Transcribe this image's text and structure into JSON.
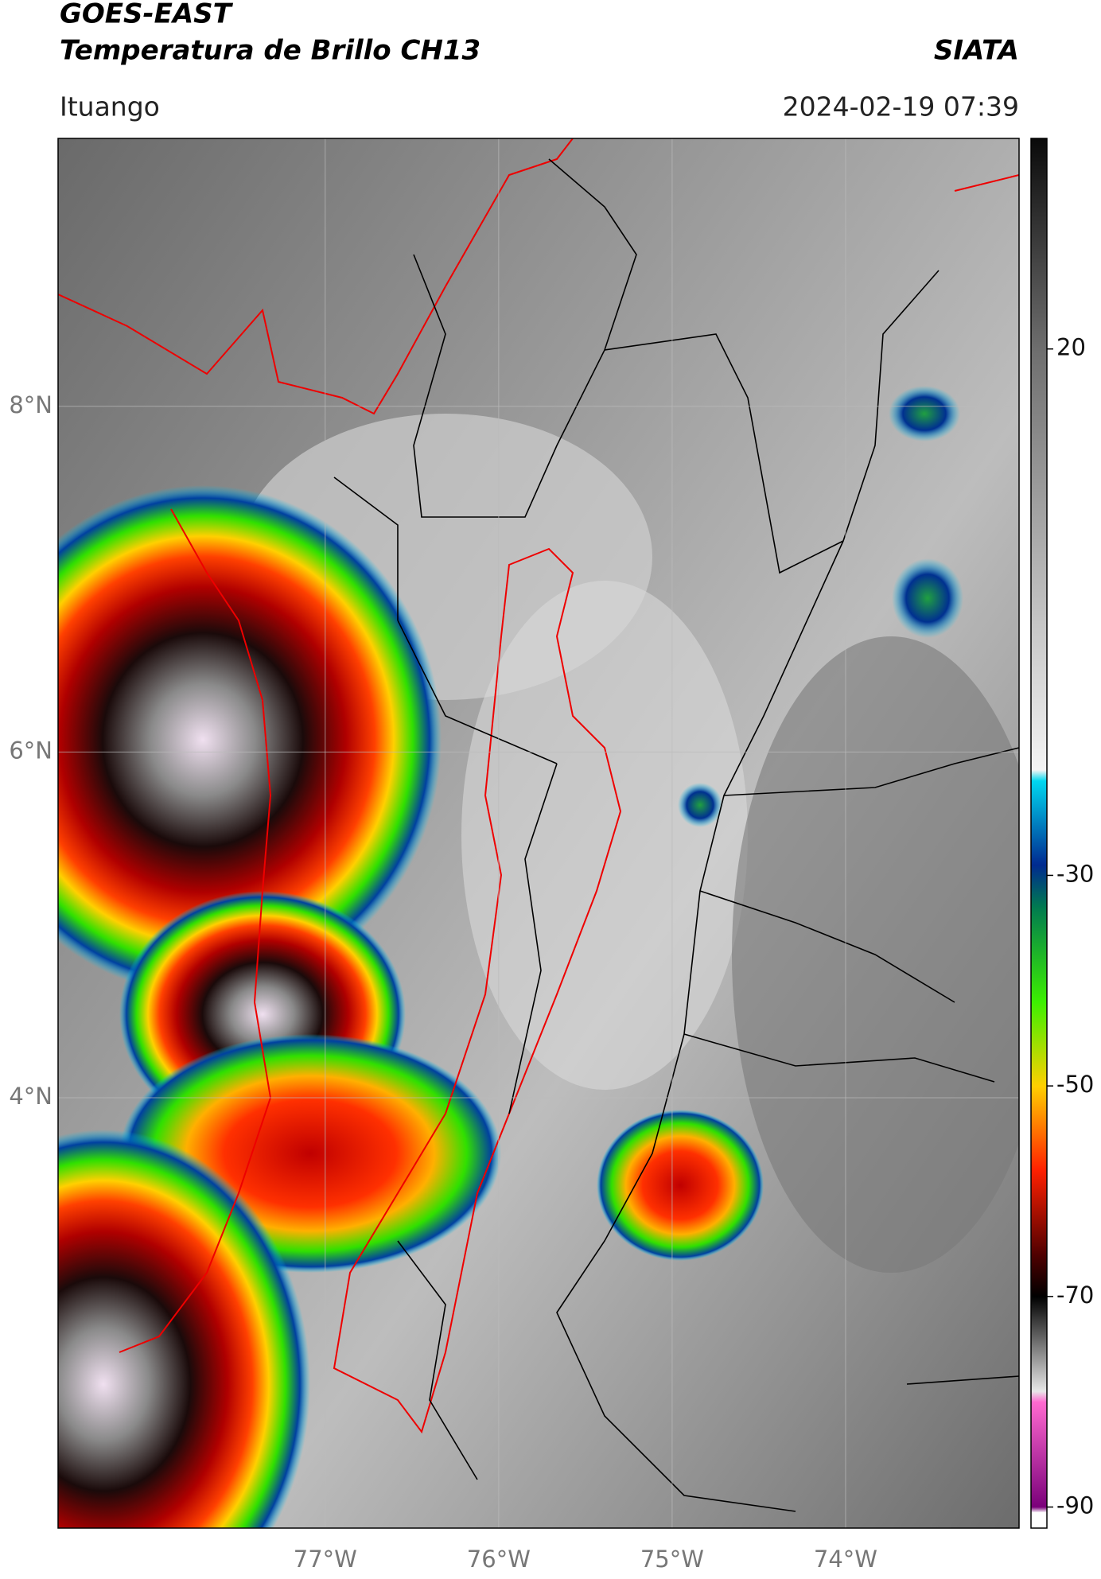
{
  "header": {
    "title": "GOES-EAST",
    "subtitle": "Temperatura de Brillo CH13",
    "brand": "SIATA",
    "location": "Ituango",
    "datetime": "2024-02-19 07:39"
  },
  "map": {
    "xlim": [
      -78.54,
      -73.0
    ],
    "ylim": [
      1.51,
      9.55
    ],
    "xticks": [
      {
        "value": -77,
        "label": "77°W"
      },
      {
        "value": -76,
        "label": "76°W"
      },
      {
        "value": -75,
        "label": "75°W"
      },
      {
        "value": -74,
        "label": "74°W"
      }
    ],
    "yticks": [
      {
        "value": 8,
        "label": "8°N"
      },
      {
        "value": 6,
        "label": "6°N"
      },
      {
        "value": 4,
        "label": "4°N"
      }
    ],
    "grid": true
  },
  "colorbar": {
    "lim": [
      -92,
      40
    ],
    "ticks": [
      20,
      -30,
      -50,
      -70,
      -90
    ],
    "colormap": [
      {
        "value": 40,
        "color": "#0a0a0a"
      },
      {
        "value": 20,
        "color": "#6e6e6e"
      },
      {
        "value": -20,
        "color": "#f4f4f4"
      },
      {
        "value": -21,
        "color": "#00d8f0"
      },
      {
        "value": -29,
        "color": "#002a90"
      },
      {
        "value": -33,
        "color": "#007a50"
      },
      {
        "value": -42,
        "color": "#3cf000"
      },
      {
        "value": -50,
        "color": "#ffd000"
      },
      {
        "value": -58,
        "color": "#ff2000"
      },
      {
        "value": -66,
        "color": "#500000"
      },
      {
        "value": -70,
        "color": "#000000"
      },
      {
        "value": -79,
        "color": "#e8e8e8"
      },
      {
        "value": -80,
        "color": "#ff6ad0"
      },
      {
        "value": -90,
        "color": "#7a007a"
      },
      {
        "value": -90.5,
        "color": "#ffffff"
      },
      {
        "value": -92,
        "color": "#ffffff"
      }
    ]
  }
}
